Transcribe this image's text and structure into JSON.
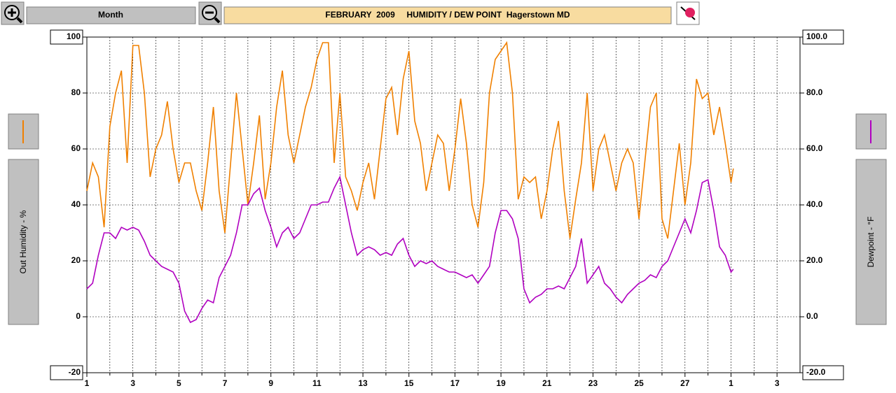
{
  "toolbar": {
    "period": "Month"
  },
  "chart_data": {
    "type": "line",
    "title": "FEBRUARY  2009     HUMIDITY / DEW POINT  Hagerstown MD",
    "xlim": [
      1,
      32
    ],
    "xticks": [
      1,
      3,
      5,
      7,
      9,
      11,
      13,
      15,
      17,
      19,
      21,
      23,
      25,
      27,
      {
        "value": 29,
        "label": "1"
      },
      {
        "value": 31,
        "label": "3"
      }
    ],
    "ylim": [
      -20,
      100
    ],
    "yticks": [
      -20,
      0,
      20,
      40,
      60,
      80,
      100
    ],
    "y2lim": [
      -20,
      100
    ],
    "y2ticks": [
      {
        "value": -20,
        "label": "-20.0"
      },
      {
        "value": 0,
        "label": "0.0"
      },
      {
        "value": 20,
        "label": "20.0"
      },
      {
        "value": 40,
        "label": "40.0"
      },
      {
        "value": 60,
        "label": "60.0"
      },
      {
        "value": 80,
        "label": "80.0"
      },
      {
        "value": 100,
        "label": "100.0"
      }
    ],
    "grid": true,
    "x": [
      1,
      1.25,
      1.5,
      1.75,
      2,
      2.25,
      2.5,
      2.75,
      3,
      3.25,
      3.5,
      3.75,
      4,
      4.25,
      4.5,
      4.75,
      5,
      5.25,
      5.5,
      5.75,
      6,
      6.25,
      6.5,
      6.75,
      7,
      7.25,
      7.5,
      7.75,
      8,
      8.25,
      8.5,
      8.75,
      9,
      9.25,
      9.5,
      9.75,
      10,
      10.25,
      10.5,
      10.75,
      11,
      11.25,
      11.5,
      11.75,
      12,
      12.25,
      12.5,
      12.75,
      13,
      13.25,
      13.5,
      13.75,
      14,
      14.25,
      14.5,
      14.75,
      15,
      15.25,
      15.5,
      15.75,
      16,
      16.25,
      16.5,
      16.75,
      17,
      17.25,
      17.5,
      17.75,
      18,
      18.25,
      18.5,
      18.75,
      19,
      19.25,
      19.5,
      19.75,
      20,
      20.25,
      20.5,
      20.75,
      21,
      21.25,
      21.5,
      21.75,
      22,
      22.25,
      22.5,
      22.75,
      23,
      23.25,
      23.5,
      23.75,
      24,
      24.25,
      24.5,
      24.75,
      25,
      25.25,
      25.5,
      25.75,
      26,
      26.25,
      26.5,
      26.75,
      27,
      27.25,
      27.5,
      27.75,
      28,
      28.25,
      28.5,
      28.75,
      29,
      29.1
    ],
    "series": [
      {
        "name": "Out Humidity - %",
        "color": "#f08000",
        "values": [
          45,
          55,
          50,
          32,
          68,
          80,
          88,
          55,
          97,
          97,
          80,
          50,
          60,
          65,
          77,
          60,
          48,
          55,
          55,
          45,
          38,
          55,
          75,
          45,
          30,
          55,
          80,
          60,
          40,
          55,
          72,
          42,
          55,
          75,
          88,
          65,
          55,
          65,
          75,
          82,
          92,
          98,
          98,
          55,
          80,
          50,
          45,
          38,
          48,
          55,
          42,
          60,
          78,
          82,
          65,
          85,
          95,
          70,
          62,
          45,
          55,
          65,
          62,
          45,
          60,
          78,
          62,
          40,
          32,
          48,
          80,
          92,
          95,
          98,
          80,
          42,
          50,
          48,
          50,
          35,
          45,
          60,
          70,
          45,
          28,
          42,
          55,
          80,
          45,
          60,
          65,
          55,
          45,
          55,
          60,
          55,
          35,
          55,
          75,
          80,
          35,
          28,
          45,
          62,
          40,
          55,
          85,
          78,
          80,
          65,
          75,
          62,
          48,
          53
        ]
      },
      {
        "name": "Dewpoint - °F",
        "color": "#b000c0",
        "axis": "y2",
        "values": [
          10,
          12,
          22,
          30,
          30,
          28,
          32,
          31,
          32,
          31,
          27,
          22,
          20,
          18,
          17,
          16,
          12,
          2,
          -2,
          -1,
          3,
          6,
          5,
          14,
          18,
          22,
          30,
          40,
          40,
          44,
          46,
          38,
          32,
          25,
          30,
          32,
          28,
          30,
          35,
          40,
          40,
          41,
          41,
          46,
          50,
          40,
          30,
          22,
          24,
          25,
          24,
          22,
          23,
          22,
          26,
          28,
          22,
          18,
          20,
          19,
          20,
          18,
          17,
          16,
          16,
          15,
          14,
          15,
          12,
          15,
          18,
          30,
          38,
          38,
          35,
          28,
          10,
          5,
          7,
          8,
          10,
          10,
          11,
          10,
          14,
          18,
          28,
          12,
          15,
          18,
          12,
          10,
          7,
          5,
          8,
          10,
          12,
          13,
          15,
          14,
          18,
          20,
          25,
          30,
          35,
          30,
          38,
          48,
          49,
          38,
          25,
          22,
          16,
          17
        ]
      }
    ]
  }
}
